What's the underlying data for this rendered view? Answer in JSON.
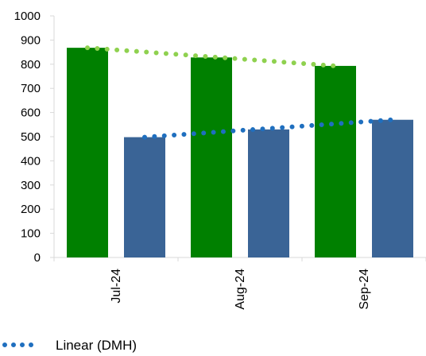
{
  "chart_data": {
    "type": "bar",
    "categories": [
      "Jul-24",
      "Aug-24",
      "Sep-24"
    ],
    "series": [
      {
        "values": [
          868,
          828,
          793
        ],
        "color": "#008000"
      },
      {
        "values": [
          498,
          530,
          570
        ],
        "color": "#3a6496"
      }
    ],
    "trendlines": [
      {
        "of_series": 0,
        "start": 868,
        "end": 793,
        "color": "#8fd14f",
        "style": "dotted"
      },
      {
        "name": "Linear (DMH)",
        "of_series": 1,
        "start": 498,
        "end": 570,
        "color": "#1f6fbf",
        "style": "dotted"
      }
    ],
    "y_ticks": [
      "0",
      "100",
      "200",
      "300",
      "400",
      "500",
      "600",
      "700",
      "800",
      "900",
      "1000"
    ],
    "ylim": [
      0,
      1000
    ],
    "grid": false,
    "legend": {
      "position": "bottom-left",
      "entries": [
        "Linear (DMH)"
      ]
    }
  }
}
